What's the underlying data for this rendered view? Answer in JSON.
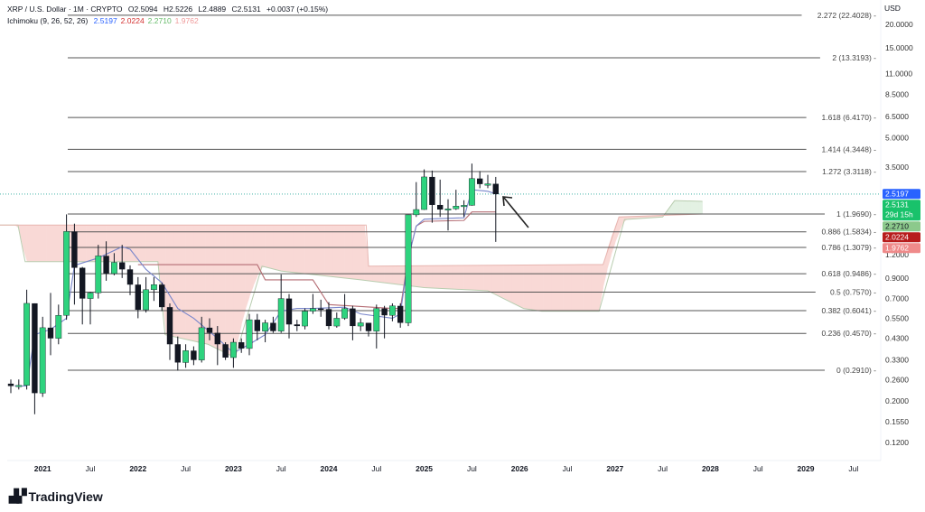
{
  "legend": {
    "symbol": "XRP / U.S. Dollar · 1M · CRYPTO",
    "open": "O2.5094",
    "high": "H2.5226",
    "low": "L2.4889",
    "close": "C2.5131",
    "change": "+0.0037 (+0.15%)",
    "indicator": "Ichimoku (9, 26, 52, 26)",
    "ind_values": [
      {
        "text": "2.5197",
        "color": "#2962ff"
      },
      {
        "text": "2.0224",
        "color": "#d32f2f"
      },
      {
        "text": "2.2710",
        "color": "#66bb6a"
      },
      {
        "text": "1.9762",
        "color": "#ef9a9a"
      }
    ]
  },
  "currency": "USD",
  "footer": {
    "brand": "TradingView",
    "logo_text": "TV"
  },
  "colors": {
    "up": "#2ed37e",
    "down": "#131722",
    "tenkan": "#7986cb",
    "kijun": "#b56d74",
    "cloud_bear": "#f9d9d6",
    "cloud_bull": "#e3f1e3",
    "fib": "#555555"
  },
  "chart_data": {
    "type": "candlestick",
    "title": "XRP / U.S. Dollar · 1M · CRYPTO",
    "scale": "log",
    "start_month": "2020-09",
    "ylim": [
      0.1,
      26
    ],
    "y_ticks": [
      "20.0000",
      "15.0000",
      "11.0000",
      "8.5000",
      "6.5000",
      "5.0000",
      "3.5000",
      "1.2000",
      "0.9000",
      "0.7000",
      "0.5500",
      "0.4300",
      "0.3300",
      "0.2600",
      "0.2000",
      "0.1550",
      "0.1200"
    ],
    "x_ticks": [
      {
        "label": "2021",
        "m": 4,
        "bold": true
      },
      {
        "label": "Jul",
        "m": 10
      },
      {
        "label": "2022",
        "m": 16,
        "bold": true
      },
      {
        "label": "Jul",
        "m": 22
      },
      {
        "label": "2023",
        "m": 28,
        "bold": true
      },
      {
        "label": "Jul",
        "m": 34
      },
      {
        "label": "2024",
        "m": 40,
        "bold": true
      },
      {
        "label": "Jul",
        "m": 46
      },
      {
        "label": "2025",
        "m": 52,
        "bold": true
      },
      {
        "label": "Jul",
        "m": 58
      },
      {
        "label": "2026",
        "m": 64,
        "bold": true
      },
      {
        "label": "Jul",
        "m": 70
      },
      {
        "label": "2027",
        "m": 76,
        "bold": true
      },
      {
        "label": "Jul",
        "m": 82
      },
      {
        "label": "2028",
        "m": 88,
        "bold": true
      },
      {
        "label": "Jul",
        "m": 94
      },
      {
        "label": "2029",
        "m": 100,
        "bold": true
      },
      {
        "label": "Jul",
        "m": 106
      }
    ],
    "ohlc": [
      [
        0.247,
        0.26,
        0.22,
        0.24
      ],
      [
        0.24,
        0.26,
        0.23,
        0.242
      ],
      [
        0.242,
        0.78,
        0.23,
        0.66
      ],
      [
        0.66,
        0.66,
        0.17,
        0.22
      ],
      [
        0.22,
        0.56,
        0.21,
        0.49
      ],
      [
        0.49,
        0.75,
        0.35,
        0.43
      ],
      [
        0.43,
        0.65,
        0.4,
        0.57
      ],
      [
        0.57,
        1.96,
        0.54,
        1.59
      ],
      [
        1.59,
        1.75,
        0.65,
        1.02
      ],
      [
        1.02,
        1.03,
        0.51,
        0.7
      ],
      [
        0.7,
        0.76,
        0.51,
        0.75
      ],
      [
        0.75,
        1.35,
        0.7,
        1.18
      ],
      [
        1.18,
        1.41,
        0.87,
        0.95
      ],
      [
        0.95,
        1.22,
        0.93,
        1.09
      ],
      [
        1.09,
        1.35,
        0.9,
        1.0
      ],
      [
        1.0,
        1.05,
        0.73,
        0.83
      ],
      [
        0.83,
        0.91,
        0.55,
        0.61
      ],
      [
        0.61,
        0.91,
        0.59,
        0.78
      ],
      [
        0.78,
        0.91,
        0.68,
        0.83
      ],
      [
        0.83,
        0.85,
        0.6,
        0.63
      ],
      [
        0.63,
        0.66,
        0.33,
        0.4
      ],
      [
        0.4,
        0.44,
        0.29,
        0.32
      ],
      [
        0.32,
        0.4,
        0.3,
        0.37
      ],
      [
        0.37,
        0.39,
        0.31,
        0.33
      ],
      [
        0.33,
        0.56,
        0.32,
        0.49
      ],
      [
        0.49,
        0.55,
        0.42,
        0.46
      ],
      [
        0.46,
        0.5,
        0.31,
        0.4
      ],
      [
        0.4,
        0.41,
        0.33,
        0.34
      ],
      [
        0.34,
        0.43,
        0.3,
        0.41
      ],
      [
        0.41,
        0.43,
        0.36,
        0.38
      ],
      [
        0.38,
        0.58,
        0.35,
        0.54
      ],
      [
        0.54,
        0.58,
        0.42,
        0.47
      ],
      [
        0.47,
        0.54,
        0.41,
        0.52
      ],
      [
        0.52,
        0.56,
        0.46,
        0.47
      ],
      [
        0.47,
        0.94,
        0.46,
        0.7
      ],
      [
        0.7,
        0.74,
        0.43,
        0.51
      ],
      [
        0.51,
        0.54,
        0.47,
        0.5
      ],
      [
        0.5,
        0.62,
        0.48,
        0.6
      ],
      [
        0.6,
        0.74,
        0.58,
        0.62
      ],
      [
        0.62,
        0.69,
        0.56,
        0.615
      ],
      [
        0.615,
        0.67,
        0.48,
        0.5
      ],
      [
        0.5,
        0.59,
        0.49,
        0.55
      ],
      [
        0.55,
        0.74,
        0.54,
        0.62
      ],
      [
        0.62,
        0.64,
        0.42,
        0.5
      ],
      [
        0.5,
        0.55,
        0.47,
        0.52
      ],
      [
        0.52,
        0.52,
        0.44,
        0.47
      ],
      [
        0.47,
        0.65,
        0.38,
        0.62
      ],
      [
        0.62,
        0.64,
        0.43,
        0.57
      ],
      [
        0.57,
        0.66,
        0.53,
        0.64
      ],
      [
        0.64,
        0.66,
        0.49,
        0.52
      ],
      [
        0.52,
        1.95,
        0.5,
        1.95
      ],
      [
        1.95,
        2.91,
        1.9,
        2.08
      ],
      [
        2.08,
        3.4,
        2.07,
        3.1
      ],
      [
        3.1,
        3.35,
        1.77,
        2.2
      ],
      [
        2.2,
        3.0,
        1.9,
        2.08
      ],
      [
        2.08,
        2.36,
        1.61,
        2.1
      ],
      [
        2.1,
        2.65,
        2.07,
        2.17
      ],
      [
        2.17,
        2.33,
        1.9,
        2.19
      ],
      [
        2.19,
        3.65,
        2.18,
        3.04
      ],
      [
        3.04,
        3.33,
        2.7,
        2.84
      ],
      [
        2.8,
        3.18,
        2.7,
        2.85
      ],
      [
        2.85,
        3.1,
        1.4,
        2.51
      ]
    ],
    "ichimoku": {
      "tenkan": [
        [
          0.5,
          0.24
        ],
        [
          2,
          0.24
        ],
        [
          3,
          0.45
        ],
        [
          5,
          0.48
        ],
        [
          7,
          0.55
        ],
        [
          8,
          1.05
        ],
        [
          11,
          1.15
        ],
        [
          14,
          1.32
        ],
        [
          15,
          1.28
        ],
        [
          17,
          1.0
        ],
        [
          19,
          0.85
        ],
        [
          21,
          0.62
        ],
        [
          23,
          0.55
        ],
        [
          26,
          0.43
        ],
        [
          28,
          0.36
        ],
        [
          30,
          0.4
        ],
        [
          32,
          0.45
        ],
        [
          34,
          0.6
        ],
        [
          36,
          0.62
        ],
        [
          38,
          0.62
        ],
        [
          42,
          0.63
        ],
        [
          44,
          0.58
        ],
        [
          48,
          0.55
        ],
        [
          49,
          0.58
        ],
        [
          50,
          1.15
        ],
        [
          51,
          1.7
        ],
        [
          52,
          1.85
        ],
        [
          57,
          1.88
        ],
        [
          58,
          2.65
        ],
        [
          60,
          2.6
        ],
        [
          61,
          2.52
        ]
      ],
      "kijun": [
        [
          16,
          1.06
        ],
        [
          31,
          1.06
        ],
        [
          32,
          0.88
        ],
        [
          38,
          0.88
        ],
        [
          40,
          0.65
        ],
        [
          48,
          0.62
        ],
        [
          49,
          0.62
        ],
        [
          50,
          1.15
        ],
        [
          51,
          1.7
        ],
        [
          52,
          1.8
        ],
        [
          57,
          1.82
        ],
        [
          58,
          2.02
        ],
        [
          61,
          2.02
        ]
      ],
      "span_a": [
        [
          -2,
          1.72
        ],
        [
          0.9,
          1.72
        ],
        [
          1.8,
          1.1
        ],
        [
          18.5,
          1.1
        ],
        [
          19.4,
          0.45
        ],
        [
          24.8,
          0.4
        ],
        [
          28.2,
          0.34
        ],
        [
          31.6,
          1.04
        ],
        [
          34,
          0.98
        ],
        [
          44,
          0.88
        ],
        [
          52,
          0.8
        ],
        [
          60,
          0.77
        ],
        [
          64.5,
          0.62
        ],
        [
          66.8,
          0.6
        ],
        [
          74,
          0.6
        ],
        [
          77.2,
          1.84
        ],
        [
          82,
          1.9
        ],
        [
          83.5,
          2.32
        ],
        [
          87,
          2.3
        ]
      ],
      "span_b": [
        [
          -2,
          1.72
        ],
        [
          44.7,
          1.72
        ],
        [
          45,
          1.04
        ],
        [
          72,
          1.06
        ],
        [
          74.5,
          1.06
        ],
        [
          76.5,
          1.9
        ],
        [
          87,
          1.97
        ]
      ]
    },
    "fib_levels": [
      {
        "label": "2.272 (22.4028)",
        "price": 22.4028
      },
      {
        "label": "2 (13.3193)",
        "price": 13.3193
      },
      {
        "label": "1.618 (6.4170)",
        "price": 6.417
      },
      {
        "label": "1.414 (4.3448)",
        "price": 4.3448
      },
      {
        "label": "1.272 (3.3118)",
        "price": 3.3118
      },
      {
        "label": "1 (1.9690)",
        "price": 1.969
      },
      {
        "label": "0.886 (1.5834)",
        "price": 1.5834
      },
      {
        "label": "0.786 (1.3079)",
        "price": 1.3079
      },
      {
        "label": "0.618 (0.9486)",
        "price": 0.9486
      },
      {
        "label": "0.5 (0.7570)",
        "price": 0.757
      },
      {
        "label": "0.382 (0.6041)",
        "price": 0.6041
      },
      {
        "label": "0.236 (0.4570)",
        "price": 0.457
      },
      {
        "label": "0 (0.2910)",
        "price": 0.291
      }
    ],
    "current_price": 2.5131,
    "price_badges": [
      {
        "text": "2.5197",
        "bg": "#2962ff",
        "fg": "#ffffff",
        "price": 2.5197
      },
      {
        "text": "2.5131",
        "sub": "29d 15h",
        "bg": "#19c26b",
        "fg": "#ffffff",
        "price": 2.5131
      },
      {
        "text": "2.2710",
        "bg": "#8cc98c",
        "fg": "#131722",
        "price": 2.271
      },
      {
        "text": "2.0224",
        "bg": "#b71c1c",
        "fg": "#ffffff",
        "price": 2.0224
      },
      {
        "text": "1.9762",
        "bg": "#ef8a8a",
        "fg": "#ffffff",
        "price": 1.9762
      }
    ],
    "annotation": "arrow pointing at latest candle"
  }
}
